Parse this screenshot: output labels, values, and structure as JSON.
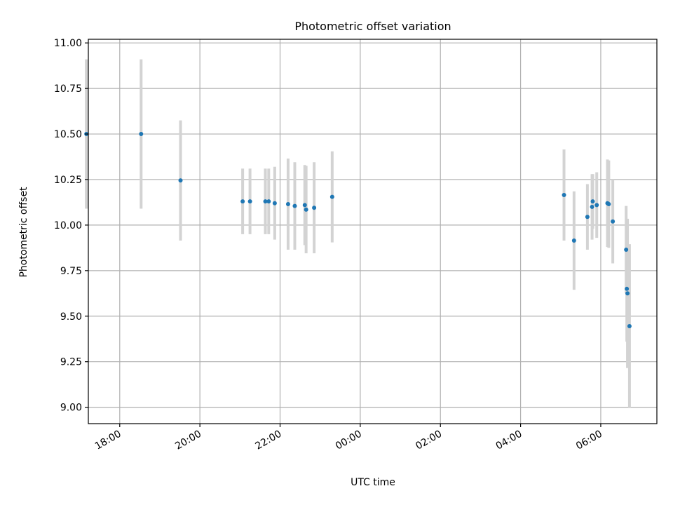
{
  "chart_data": {
    "type": "scatter",
    "title": "Photometric offset variation",
    "xlabel": "UTC time",
    "ylabel": "Photometric offset",
    "x_axis_type": "time",
    "xlim": [
      "17:13",
      "07:24"
    ],
    "ylim": [
      8.91,
      11.02
    ],
    "grid": true,
    "x_ticks": [
      "18:00",
      "20:00",
      "22:00",
      "00:00",
      "02:00",
      "04:00",
      "06:00"
    ],
    "y_ticks": [
      "9.00",
      "9.25",
      "9.50",
      "9.75",
      "10.00",
      "10.25",
      "10.50",
      "10.75",
      "11.00"
    ],
    "colors": {
      "point": "#1f77b4",
      "errorbar": "#d3d3d3",
      "grid": "#b0b0b0"
    },
    "points": [
      {
        "x": "17:10",
        "y": 10.5,
        "yerr": 0.41
      },
      {
        "x": "18:32",
        "y": 10.5,
        "yerr": 0.41
      },
      {
        "x": "19:31",
        "y": 10.245,
        "yerr": 0.33
      },
      {
        "x": "21:04",
        "y": 10.13,
        "yerr": 0.18
      },
      {
        "x": "21:15",
        "y": 10.13,
        "yerr": 0.18
      },
      {
        "x": "21:38",
        "y": 10.13,
        "yerr": 0.18
      },
      {
        "x": "21:43",
        "y": 10.13,
        "yerr": 0.18
      },
      {
        "x": "21:52",
        "y": 10.12,
        "yerr": 0.2
      },
      {
        "x": "22:12",
        "y": 10.115,
        "yerr": 0.25
      },
      {
        "x": "22:22",
        "y": 10.105,
        "yerr": 0.24
      },
      {
        "x": "22:37",
        "y": 10.11,
        "yerr": 0.22
      },
      {
        "x": "22:39",
        "y": 10.085,
        "yerr": 0.24
      },
      {
        "x": "22:51",
        "y": 10.095,
        "yerr": 0.25
      },
      {
        "x": "23:18",
        "y": 10.155,
        "yerr": 0.25
      },
      {
        "x": "05:05",
        "y": 10.165,
        "yerr": 0.25
      },
      {
        "x": "05:20",
        "y": 9.915,
        "yerr": 0.27
      },
      {
        "x": "05:40",
        "y": 10.045,
        "yerr": 0.18
      },
      {
        "x": "05:47",
        "y": 10.1,
        "yerr": 0.18
      },
      {
        "x": "05:48",
        "y": 10.13,
        "yerr": 0.15
      },
      {
        "x": "05:54",
        "y": 10.11,
        "yerr": 0.18
      },
      {
        "x": "06:10",
        "y": 10.12,
        "yerr": 0.24
      },
      {
        "x": "06:12",
        "y": 10.115,
        "yerr": 0.24
      },
      {
        "x": "06:18",
        "y": 10.02,
        "yerr": 0.23
      },
      {
        "x": "06:38",
        "y": 9.865,
        "yerr": 0.24
      },
      {
        "x": "06:39",
        "y": 9.65,
        "yerr": 0.29
      },
      {
        "x": "06:40",
        "y": 9.625,
        "yerr": 0.41
      },
      {
        "x": "06:43",
        "y": 9.445,
        "yerr": 0.45
      }
    ]
  }
}
